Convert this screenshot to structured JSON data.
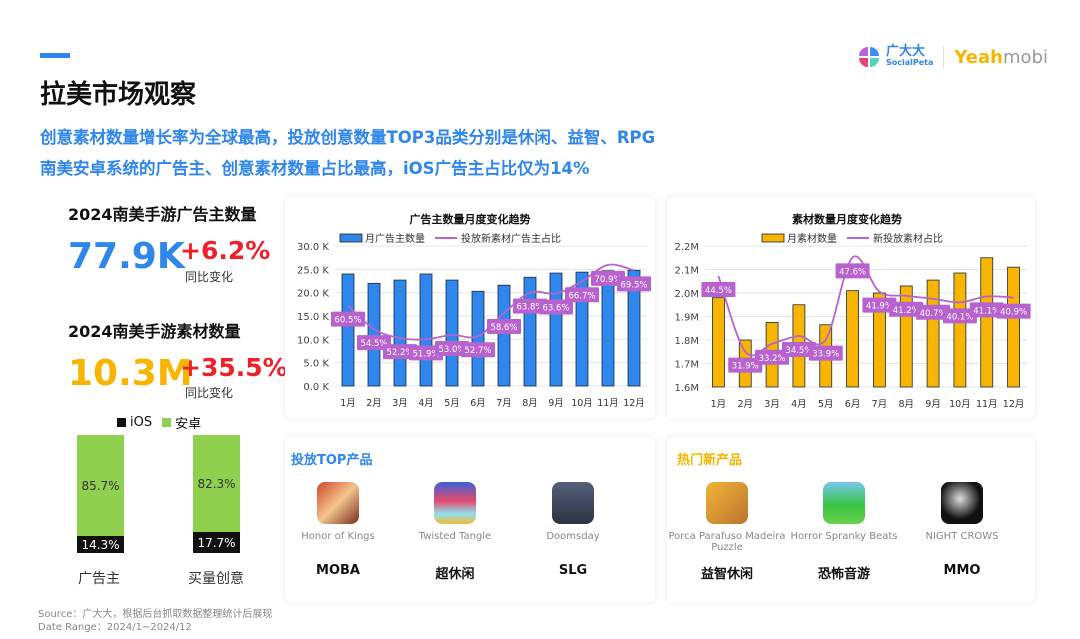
{
  "header": {
    "title": "拉美市场观察",
    "subtitle_1": "创意素材数量增长率为全球最高，投放创意数量TOP3品类分别是休闲、益智、RPG",
    "subtitle_2": "南美安卓系统的广告主、创意素材数量占比最高，iOS广告主占比仅为14%",
    "logo_1_cn": "广大大",
    "logo_1_en": "SocialPeta",
    "logo_2_a": "Yeah",
    "logo_2_b": "mobi"
  },
  "stats": [
    {
      "label": "2024南美手游广告主数量",
      "value": "77.9K",
      "change": "+6.2%",
      "change_label": "同比变化"
    },
    {
      "label": "2024南美手游素材数量",
      "value": "10.3M",
      "change": "+35.5%",
      "change_label": "同比变化"
    }
  ],
  "colors": {
    "blue": "#2f86eb",
    "orange": "#f7b500",
    "red": "#f0202a",
    "purple": "#b862d0",
    "green": "#8fd14f"
  },
  "os_share": {
    "legend_ios": "iOS",
    "legend_android": "安卓",
    "bars": [
      {
        "label": "广告主",
        "android": "85.7%",
        "ios": "14.3%",
        "ios_value": 14.3
      },
      {
        "label": "买量创意",
        "android": "82.3%",
        "ios": "17.7%",
        "ios_value": 17.7
      }
    ]
  },
  "chart_data": [
    {
      "type": "bar",
      "title": "广告主数量月度变化趋势",
      "categories": [
        "1月",
        "2月",
        "3月",
        "4月",
        "5月",
        "6月",
        "7月",
        "8月",
        "9月",
        "10月",
        "11月",
        "12月"
      ],
      "yticks": [
        "0.0 K",
        "5.0 K",
        "10.0 K",
        "15.0 K",
        "20.0 K",
        "25.0 K",
        "30.0 K"
      ],
      "ylim": [
        0,
        30
      ],
      "series": [
        {
          "name": "月广告主数量",
          "type": "bar",
          "values": [
            24.0,
            22.0,
            22.7,
            24.0,
            22.7,
            20.3,
            21.6,
            23.3,
            24.2,
            24.4,
            24.7,
            24.8
          ]
        },
        {
          "name": "投放新素材广告主占比",
          "type": "line",
          "values": [
            60.5,
            54.5,
            52.2,
            51.9,
            53.0,
            52.7,
            58.6,
            63.8,
            63.6,
            66.7,
            70.9,
            69.5
          ],
          "labels": [
            "60.5%",
            "54.5%",
            "52.2%",
            "51.9%",
            "53.0%",
            "52.7%",
            "58.6%",
            "63.8%",
            "63.6%",
            "66.7%",
            "70.9%",
            "69.5%"
          ],
          "ylim": [
            40,
            75.7
          ]
        }
      ],
      "grid": true,
      "legend": "top"
    },
    {
      "type": "bar",
      "title": "素材数量月度变化趋势",
      "categories": [
        "1月",
        "2月",
        "3月",
        "4月",
        "5月",
        "6月",
        "7月",
        "8月",
        "9月",
        "10月",
        "11月",
        "12月"
      ],
      "yticks": [
        "1.6M",
        "1.7M",
        "1.8M",
        "1.9M",
        "2.0M",
        "2.1M",
        "2.2M"
      ],
      "ylim": [
        1.6,
        2.2
      ],
      "series": [
        {
          "name": "月素材数量",
          "type": "bar",
          "values": [
            1.98,
            1.8,
            1.875,
            1.95,
            1.865,
            2.01,
            2.0,
            2.03,
            2.055,
            2.085,
            2.15,
            2.11
          ]
        },
        {
          "name": "新投放素材占比",
          "type": "line",
          "values": [
            44.5,
            31.9,
            33.2,
            34.5,
            33.9,
            47.6,
            41.9,
            41.2,
            40.7,
            40.1,
            41.1,
            40.9
          ],
          "labels": [
            "44.5%",
            "31.9%",
            "33.2%",
            "34.5%",
            "33.9%",
            "47.6%",
            "41.9%",
            "41.2%",
            "40.7%",
            "40.1%",
            "41.1%",
            "40.9%"
          ],
          "ylim": [
            26,
            49.5
          ]
        }
      ],
      "grid": true,
      "legend": "top"
    }
  ],
  "top_products": {
    "title": "投放TOP产品",
    "items": [
      {
        "name": "Honor of Kings",
        "category": "MOBA",
        "icon": "honor-of-kings-icon"
      },
      {
        "name": "Twisted Tangle",
        "category": "超休闲",
        "icon": "twisted-tangle-icon"
      },
      {
        "name": "Doomsday",
        "category": "SLG",
        "icon": "doomsday-icon"
      }
    ]
  },
  "new_products": {
    "title": "热门新产品",
    "items": [
      {
        "name": "Porca Parafuso Madeira Puzzle",
        "category": "益智休闲",
        "icon": "porca-parafuso-icon"
      },
      {
        "name": "Horror Spranky Beats",
        "category": "恐怖音游",
        "icon": "horror-spranky-icon"
      },
      {
        "name": "NIGHT CROWS",
        "category": "MMO",
        "icon": "night-crows-icon"
      }
    ]
  },
  "footer": {
    "source": "Source：广大大，根据后台抓取数据整理统计后展现",
    "date_range": "Date Range：2024/1~2024/12"
  }
}
